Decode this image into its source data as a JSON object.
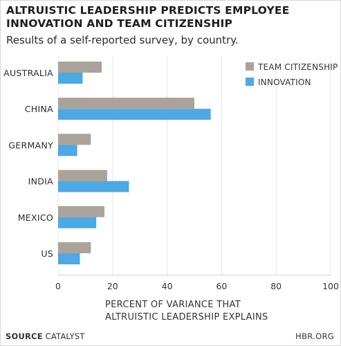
{
  "header": {
    "title_line1": "ALTRUISTIC LEADERSHIP PREDICTS EMPLOYEE",
    "title_line2": "INNOVATION AND TEAM CITIZENSHIP",
    "subtitle": "Results of a self-reported survey, by country."
  },
  "chart_data": {
    "type": "bar",
    "orientation": "horizontal",
    "title": "ALTRUISTIC LEADERSHIP PREDICTS EMPLOYEE INNOVATION AND TEAM CITIZENSHIP",
    "subtitle": "Results of a self-reported survey, by country.",
    "categories": [
      "AUSTRALIA",
      "CHINA",
      "GERMANY",
      "INDIA",
      "MEXICO",
      "US"
    ],
    "series": [
      {
        "name": "TEAM CITIZENSHIP",
        "color": "#aaa39b",
        "values": [
          16,
          50,
          12,
          18,
          17,
          12
        ]
      },
      {
        "name": "INNOVATION",
        "color": "#4ea8e3",
        "values": [
          9,
          56,
          7,
          26,
          14,
          8
        ]
      }
    ],
    "xlabel": "PERCENT OF VARIANCE THAT ALTRUISTIC LEADERSHIP EXPLAINS",
    "xlabel_line1": "PERCENT OF VARIANCE THAT",
    "xlabel_line2": "ALTRUISTIC LEADERSHIP EXPLAINS",
    "xlim": [
      0,
      100
    ],
    "xticks": [
      0,
      20,
      40,
      60,
      80,
      100
    ],
    "xtick_labels": [
      "0",
      "20",
      "40",
      "60",
      "80",
      "100"
    ],
    "grid": true,
    "legend_position": "top-right"
  },
  "footer": {
    "source_label": "SOURCE",
    "source_value": "CATALYST",
    "brand": "HBR.ORG"
  }
}
